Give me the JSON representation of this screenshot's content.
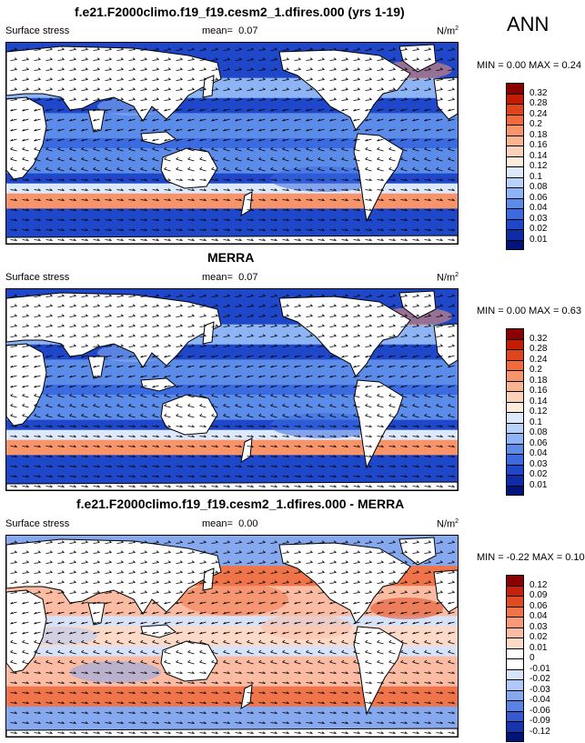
{
  "season": "ANN",
  "legend_levels": {
    "main": [
      "0.32",
      "0.28",
      "0.24",
      "0.2",
      "0.18",
      "0.16",
      "0.14",
      "0.12",
      "0.1",
      "0.08",
      "0.06",
      "0.04",
      "0.03",
      "0.02",
      "0.01"
    ],
    "diff": [
      "0.12",
      "0.09",
      "0.06",
      "0.04",
      "0.03",
      "0.02",
      "0.01",
      "0",
      "-0.01",
      "-0.02",
      "-0.03",
      "-0.04",
      "-0.06",
      "-0.09",
      "-0.12"
    ]
  },
  "palettes": {
    "main": [
      "#8b0000",
      "#c51b00",
      "#e0441a",
      "#f26a3a",
      "#f7946a",
      "#f9b491",
      "#fbd2b9",
      "#fdebdc",
      "#dce8fb",
      "#b9d2fa",
      "#8db4f4",
      "#5c8cea",
      "#3b6be0",
      "#1f47c9",
      "#0f2ca8",
      "#00147a"
    ],
    "diff": [
      "#8b0000",
      "#c8200c",
      "#e24a22",
      "#f0744a",
      "#f79a77",
      "#fbbca3",
      "#fdd9c8",
      "#ffffff",
      "#ffffff",
      "#d6e3fb",
      "#b0c8f7",
      "#86a8ef",
      "#5a82e4",
      "#3459d2",
      "#1734b0",
      "#00147a"
    ]
  },
  "panels": [
    {
      "id": "model",
      "title": "f.e21.F2000climo.f19_f19.cesm2_1.dfires.000 (yrs 1-19)",
      "variable": "Surface stress",
      "mean_label": "mean=",
      "mean_value": "0.07",
      "units": "N/m",
      "units_sup": "2",
      "min_max": "MIN =  0.00 MAX =  0.24",
      "palette": "main"
    },
    {
      "id": "obs",
      "title": "MERRA",
      "variable": "Surface stress",
      "mean_label": "mean=",
      "mean_value": "0.07",
      "units": "N/m",
      "units_sup": "2",
      "min_max": "MIN =  0.00 MAX =  0.63",
      "palette": "main"
    },
    {
      "id": "diff",
      "title": "f.e21.F2000climo.f19_f19.cesm2_1.dfires.000 - MERRA",
      "variable": "Surface stress",
      "mean_label": "mean=",
      "mean_value": "0.00",
      "units": "N/m",
      "units_sup": "2",
      "min_max": "MIN = -0.22 MAX =  0.10",
      "palette": "diff"
    }
  ]
}
